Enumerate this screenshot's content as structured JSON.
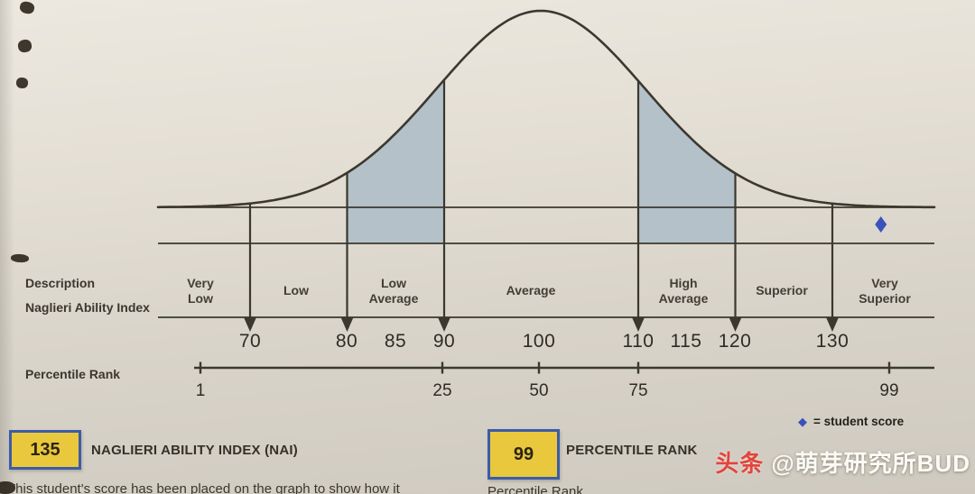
{
  "chart_data": {
    "type": "area",
    "title": "",
    "curve": "normal-distribution-bell",
    "description_row_label": "Description",
    "sections": [
      {
        "label": "Very\nLow"
      },
      {
        "label": "Low"
      },
      {
        "label": "Low\nAverage"
      },
      {
        "label": "Average"
      },
      {
        "label": "High\nAverage"
      },
      {
        "label": "Superior"
      },
      {
        "label": "Very\nSuperior"
      }
    ],
    "nai_axis": {
      "label": "Naglieri Ability Index",
      "ticks": [
        "70",
        "80",
        "85",
        "90",
        "100",
        "110",
        "115",
        "120",
        "130"
      ],
      "boundary_values": [
        70,
        80,
        90,
        110,
        120,
        130
      ],
      "shaded_ranges": [
        [
          80,
          90
        ],
        [
          110,
          120
        ]
      ],
      "mean": 100
    },
    "percentile_axis": {
      "label": "Percentile Rank",
      "ticks": [
        "1",
        "25",
        "50",
        "75",
        "99"
      ]
    },
    "student_score": {
      "nai": 135,
      "marker": "diamond"
    }
  },
  "legend": {
    "marker": "◆",
    "label": "= student score"
  },
  "summary_boxes": [
    {
      "value": "135",
      "label": "NAGLIERI ABILITY INDEX (NAI)",
      "note": "This student's score has been placed on the graph to show how it"
    },
    {
      "value": "99",
      "label": "PERCENTILE RANK",
      "note": "Percentile Rank"
    }
  ],
  "watermark": {
    "brand": "头条",
    "handle": "@萌芽研究所BUD"
  },
  "colors": {
    "paper": "#d9d4cb",
    "shade": "#b4c1c8",
    "line": "#3a382f",
    "box_fill": "#e9c83d",
    "box_border": "#3c5ca6",
    "diamond_blue": "#3a52bb",
    "text": "#33312a"
  }
}
